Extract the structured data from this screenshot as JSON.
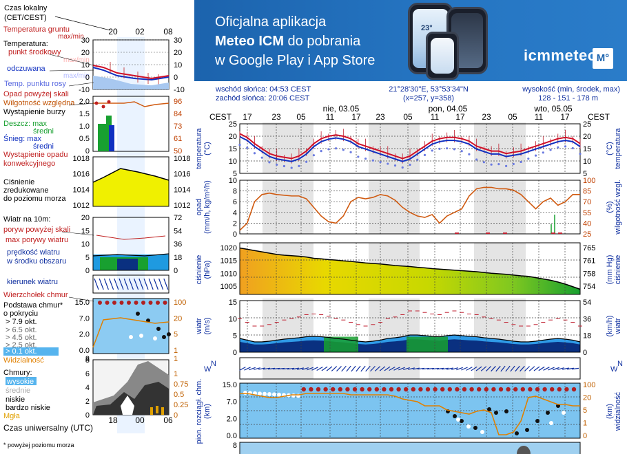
{
  "banner": {
    "line1": "Oficjalna aplikacja",
    "line2a": "Meteo ICM",
    "line2b": " do pobrania",
    "line3": "w Google Play i App Store",
    "logo": "icmmeteo",
    "logo_box": "M°",
    "phone_temp": "23°"
  },
  "header": {
    "sunrise": "wschód słońca: 04:53 CEST",
    "sunset": "zachód słońca: 20:06 CEST",
    "coords": "21°28'30\"E, 53°53'34\"N",
    "grid": "(x=257,  y=358)",
    "height_label": "wysokość (min, środek, max)",
    "height_values": "128 - 151 - 178 m"
  },
  "legend": {
    "time_local": "Czas lokalny",
    "time_local2": "(CET/CEST)",
    "soil": "Temperatura gruntu",
    "soil2": "max/min",
    "temp": "Temperatura:",
    "temp_mid": "punkt środkowy",
    "temp_maxmin": "max/min",
    "temp_feel": "odczuwana",
    "temp_feel_maxmin": "max/min",
    "dew": "Temp. punktu rosy",
    "precip": "Opad powyżej skali",
    "humidity": "Wilgotność względna",
    "storm": "Wystąpienie burzy",
    "rain": "Deszcz: max",
    "rain_mid": "średni",
    "snow": "Śnieg: max",
    "snow_mid": "średni",
    "precip_occ": "Wystąpienie opadu",
    "precip_occ2": "konwekcyjnego",
    "pressure": "Ciśnienie",
    "pressure2": "zredukowane",
    "pressure3": "do poziomu morza",
    "wind": "Wiatr na 10m:",
    "gust_over": "poryw powyżej skali",
    "gust_max": "max porywy wiatru",
    "wind_speed": "prędkość wiatru",
    "wind_speed2": "w środku obszaru",
    "wind_dir": "kierunek wiatru",
    "cloud_top": "Wierzchołek chmur",
    "cloud_base": "Podstawa chmur*",
    "cloud_base2": "o pokryciu",
    "okt1": "> 7.9 okt.",
    "okt2": "> 6.5 okt.",
    "okt3": "> 4.5 okt.",
    "okt4": "> 2.5 okt.",
    "okt5": "> 0.1 okt.",
    "visibility": "Widzialność",
    "clouds": "Chmury:",
    "cl_high": "wysokie",
    "cl_mid": "średnie",
    "cl_low": "niskie",
    "cl_vlow": "bardzo niskie",
    "fog": "Mgła",
    "utc": "Czas uniwersalny (UTC)",
    "footnote": "* powyżej poziomu morza",
    "top_ticks": [
      "20",
      "02",
      "08"
    ],
    "bottom_ticks": [
      "18",
      "00",
      "06"
    ],
    "temp_axis": [
      "30",
      "20",
      "10",
      "0",
      "-10"
    ],
    "hum_axis": [
      "96",
      "84",
      "73",
      "61",
      "50"
    ],
    "precip_axis": [
      "2.0",
      "1.5",
      "1.0",
      "0.5",
      "0"
    ],
    "press_axis": [
      "1018",
      "1016",
      "1014",
      "1012"
    ],
    "wind_ms": [
      "20",
      "15",
      "10",
      "5",
      "0"
    ],
    "wind_kmh": [
      "72",
      "54",
      "36",
      "18",
      "0"
    ],
    "cb_axis": [
      "15.0",
      "7.0",
      "2.0",
      "0.0"
    ],
    "cb_right": [
      "100",
      "20",
      "5",
      "1"
    ],
    "vis_min": "0",
    "vis_max": "1",
    "cl_axis": [
      "8",
      "6",
      "4",
      "2",
      "0"
    ],
    "cl_right": [
      "1",
      "0.75",
      "0.5",
      "0.25",
      "0"
    ],
    "vis_left": "8"
  },
  "main": {
    "cest": "CEST",
    "hours": [
      "17",
      "23",
      "05",
      "11",
      "17",
      "23",
      "05",
      "11",
      "17",
      "23",
      "05",
      "11",
      "17"
    ],
    "days": [
      "nie, 03.05",
      "pon, 04.05",
      "wto, 05.05"
    ],
    "temp_label": "temperatura",
    "temp_unit": "(°C)",
    "temp_ticks": [
      "25",
      "20",
      "15",
      "10",
      "5"
    ],
    "precip_label": "opad",
    "precip_unit": "(mm/h, kg/m²/h)",
    "precip_ticks": [
      "10",
      "8",
      "6",
      "4",
      "2",
      "0"
    ],
    "hum_label": "wilgotność wzgl.",
    "hum_unit": "(%)",
    "hum_ticks": [
      "100",
      "85",
      "70",
      "55",
      "40",
      "25"
    ],
    "press_label": "ciśnienie",
    "press_unit": "(hPa)",
    "press_ticks": [
      "1020",
      "1015",
      "1010",
      "1005"
    ],
    "press_unit2": "(mm Hg)",
    "press_ticks2": [
      "765",
      "761",
      "758",
      "754"
    ],
    "wind_label": "wiatr",
    "wind_unit": "(m/s)",
    "wind_ticks": [
      "15",
      "10",
      "5",
      "0"
    ],
    "wind_unit2": "(km/h)",
    "wind_ticks2": [
      "54",
      "36",
      "18",
      "0"
    ],
    "dir_w": "W",
    "dir_n": "N",
    "cb_label": "pion. rozciągł. chm.",
    "cb_unit": "(km)",
    "cb_ticks": [
      "15.0",
      "7.0",
      "2.0",
      "0.0"
    ],
    "vis_label": "widzialność",
    "vis_unit": "(km)",
    "vis_ticks": [
      "100",
      "20",
      "5",
      "1",
      "0"
    ],
    "clouds_tick": "8"
  },
  "colors": {
    "mid_temp": "#d01028",
    "feel": "#1030c0",
    "dew": "#6a7ae0",
    "humidity": "#d05a10",
    "pressure_fill": "#e8d800",
    "wind_dark": "#0a3080",
    "wind_green": "#18a030",
    "sky": "#7cc4f0",
    "banner": "#1c63ad"
  },
  "chart_data": {
    "type": "line",
    "series": [
      {
        "name": "punkt środkowy",
        "x": [
          "17",
          "23",
          "05",
          "11",
          "17",
          "23",
          "05",
          "11",
          "17",
          "23",
          "05",
          "11",
          "17"
        ],
        "values": [
          21,
          15,
          11,
          14,
          20,
          16,
          10,
          18,
          19,
          14,
          13,
          19,
          16
        ]
      }
    ]
  }
}
